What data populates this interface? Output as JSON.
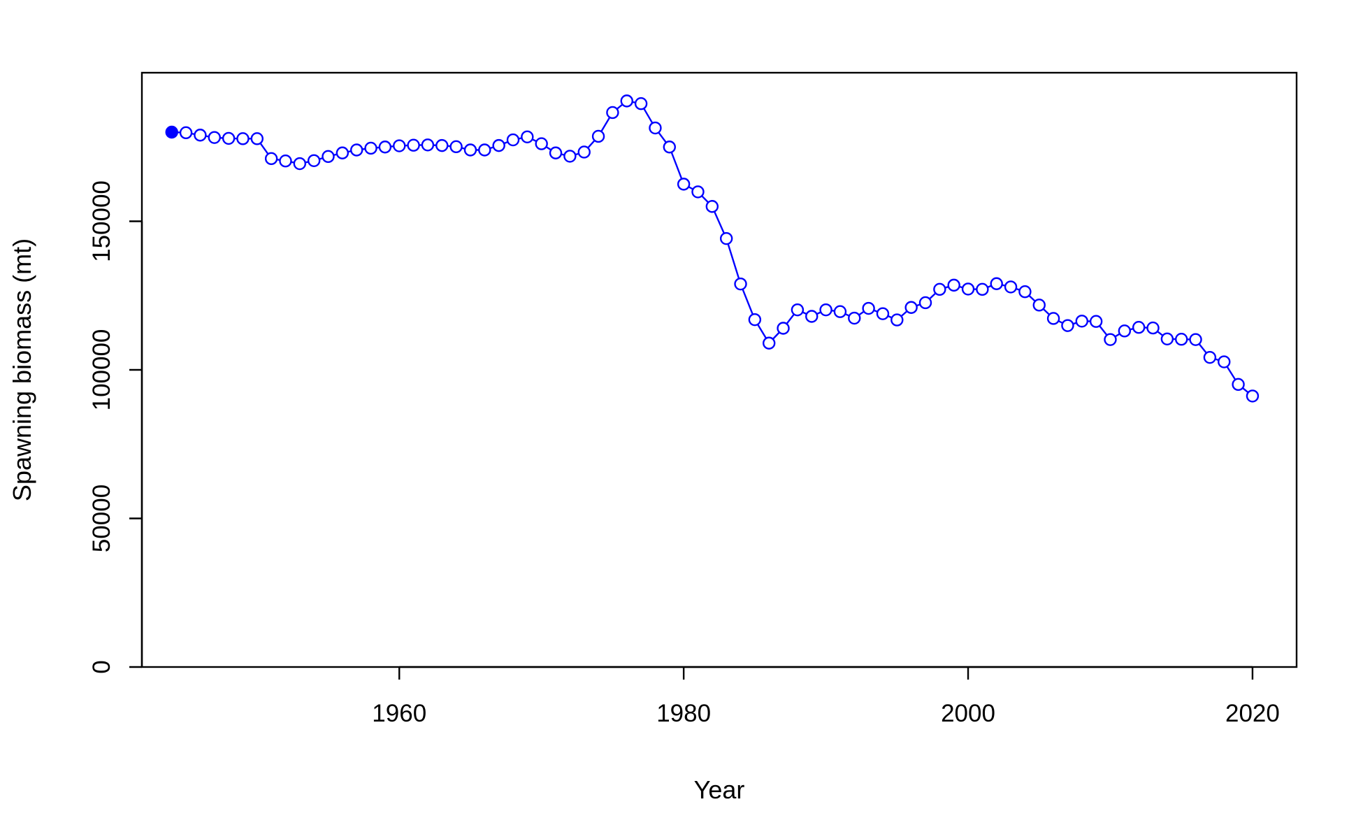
{
  "chart_data": {
    "type": "line",
    "title": "",
    "xlabel": "Year",
    "ylabel": "Spawning biomass (mt)",
    "xlim": [
      1941.9,
      2023.1
    ],
    "ylim": [
      0,
      200000
    ],
    "x_ticks": [
      1960,
      1980,
      2000,
      2020
    ],
    "x_tick_labels": [
      "1960",
      "1980",
      "2000",
      "2020"
    ],
    "y_ticks": [
      0,
      50000,
      100000,
      150000
    ],
    "y_tick_labels": [
      "0",
      "50000",
      "100000",
      "150000"
    ],
    "grid": false,
    "legend": "none",
    "colors": {
      "series": "#0000ff",
      "axes": "#000000",
      "background": "#ffffff"
    },
    "marker": {
      "first_point": "filled-circle",
      "others": "open-circle"
    },
    "series": [
      {
        "x": [
          1944,
          1945,
          1946,
          1947,
          1948,
          1949,
          1950,
          1951,
          1952,
          1953,
          1954,
          1955,
          1956,
          1957,
          1958,
          1959,
          1960,
          1961,
          1962,
          1963,
          1964,
          1965,
          1966,
          1967,
          1968,
          1969,
          1970,
          1971,
          1972,
          1973,
          1974,
          1975,
          1976,
          1977,
          1978,
          1979,
          1980,
          1981,
          1982,
          1983,
          1984,
          1985,
          1986,
          1987,
          1988,
          1989,
          1990,
          1991,
          1992,
          1993,
          1994,
          1995,
          1996,
          1997,
          1998,
          1999,
          2000,
          2001,
          2002,
          2003,
          2004,
          2005,
          2006,
          2007,
          2008,
          2009,
          2010,
          2011,
          2012,
          2013,
          2014,
          2015,
          2016,
          2017,
          2018,
          2019,
          2020
        ],
        "values": [
          180000,
          179800,
          179000,
          178200,
          177900,
          177800,
          177800,
          171100,
          170300,
          169400,
          170400,
          171800,
          173000,
          174000,
          174600,
          175000,
          175400,
          175600,
          175700,
          175500,
          175100,
          174000,
          174000,
          175500,
          177400,
          178400,
          176100,
          173000,
          171900,
          173300,
          178600,
          186600,
          190500,
          189600,
          181400,
          175000,
          162500,
          159900,
          155000,
          144200,
          128900,
          116900,
          109000,
          114000,
          120200,
          118000,
          120200,
          119600,
          117400,
          120700,
          118900,
          116800,
          121000,
          122600,
          127100,
          128500,
          127200,
          127100,
          129000,
          127900,
          126300,
          121800,
          117300,
          114900,
          116400,
          116300,
          110200,
          113100,
          114300,
          114100,
          110400,
          110300,
          110200,
          104200,
          102700,
          95100,
          91200
        ]
      }
    ]
  }
}
